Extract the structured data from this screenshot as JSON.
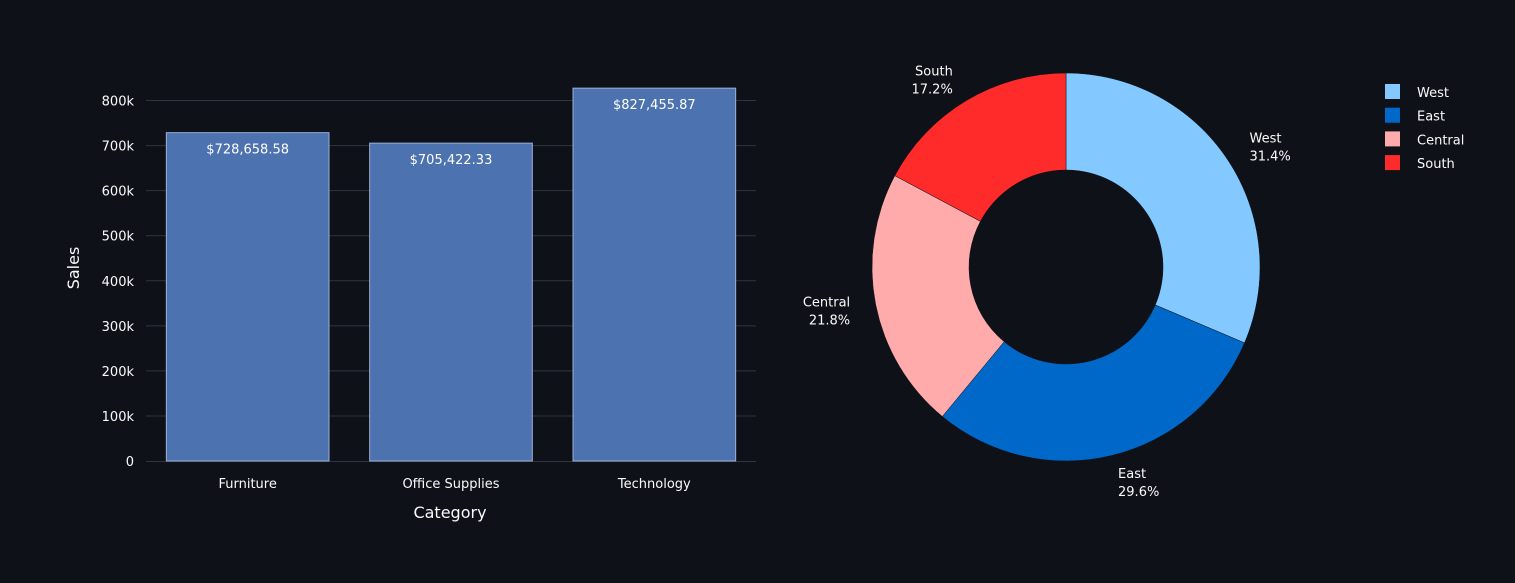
{
  "chart_data": [
    {
      "type": "bar",
      "title": "",
      "xlabel": "Category",
      "ylabel": "Sales",
      "categories": [
        "Furniture",
        "Office Supplies",
        "Technology"
      ],
      "values": [
        728658.58,
        705422.33,
        827455.87
      ],
      "value_labels": [
        "$728,658.58",
        "$705,422.33",
        "$827,455.87"
      ],
      "ylim": [
        0,
        850000
      ],
      "yticks": [
        0,
        100000,
        200000,
        300000,
        400000,
        500000,
        600000,
        700000,
        800000
      ],
      "ytick_labels": [
        "0",
        "100k",
        "200k",
        "300k",
        "400k",
        "500k",
        "600k",
        "700k",
        "800k"
      ],
      "grid": true,
      "color": "#4c72b0"
    },
    {
      "type": "pie",
      "hole": true,
      "labels": [
        "West",
        "East",
        "Central",
        "South"
      ],
      "values": [
        31.4,
        29.6,
        21.8,
        17.2
      ],
      "percent_labels": [
        "31.4%",
        "29.6%",
        "21.8%",
        "17.2%"
      ],
      "colors": [
        "#83c9ff",
        "#0068c9",
        "#ffabab",
        "#ff2b2b"
      ],
      "legend": "top-right",
      "direction": "clockwise"
    }
  ]
}
